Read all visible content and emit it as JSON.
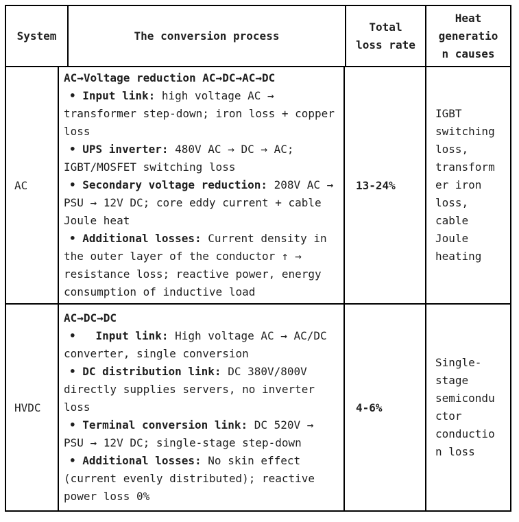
{
  "table": {
    "headers": [
      "System",
      "The conversion process",
      "Total loss rate",
      "Heat generation causes"
    ],
    "rows": [
      {
        "system": "AC",
        "process_title": "AC→Voltage reduction AC→DC→AC→DC",
        "bullets": [
          {
            "label": "• Input link:",
            "text": " high voltage AC → transformer step-down; iron loss + copper loss"
          },
          {
            "label": "• UPS inverter:",
            "text": " 480V AC → DC → AC; IGBT/MOSFET switching loss"
          },
          {
            "label": "• Secondary voltage reduction:",
            "text": " 208V AC → PSU → 12V DC; core eddy current + cable Joule heat"
          },
          {
            "label": "• Additional losses:",
            "text": " Current density in the outer layer of the conductor ↑ → resistance loss; reactive power, energy consumption of inductive load"
          }
        ],
        "loss_rate": "13-24%",
        "heat_causes": "IGBT switching loss, transformer iron loss, cable Joule heating"
      },
      {
        "system": "HVDC",
        "process_title": "AC→DC→DC",
        "bullets": [
          {
            "label": "•   Input link:",
            "text": " High voltage AC → AC/DC converter, single conversion"
          },
          {
            "label": "• DC distribution link:",
            "text": " DC 380V/800V directly supplies servers, no inverter loss"
          },
          {
            "label": "• Terminal conversion link:",
            "text": " DC 520V → PSU → 12V DC; single-stage step-down"
          },
          {
            "label": "• Additional losses:",
            "text": " No skin effect (current evenly distributed); reactive power loss 0%"
          }
        ],
        "loss_rate": "4-6%",
        "heat_causes": "Single-stage semiconductor conduction loss"
      }
    ]
  },
  "colors": {
    "border": "#000000",
    "text": "#1f1f1f",
    "background": "#ffffff"
  }
}
